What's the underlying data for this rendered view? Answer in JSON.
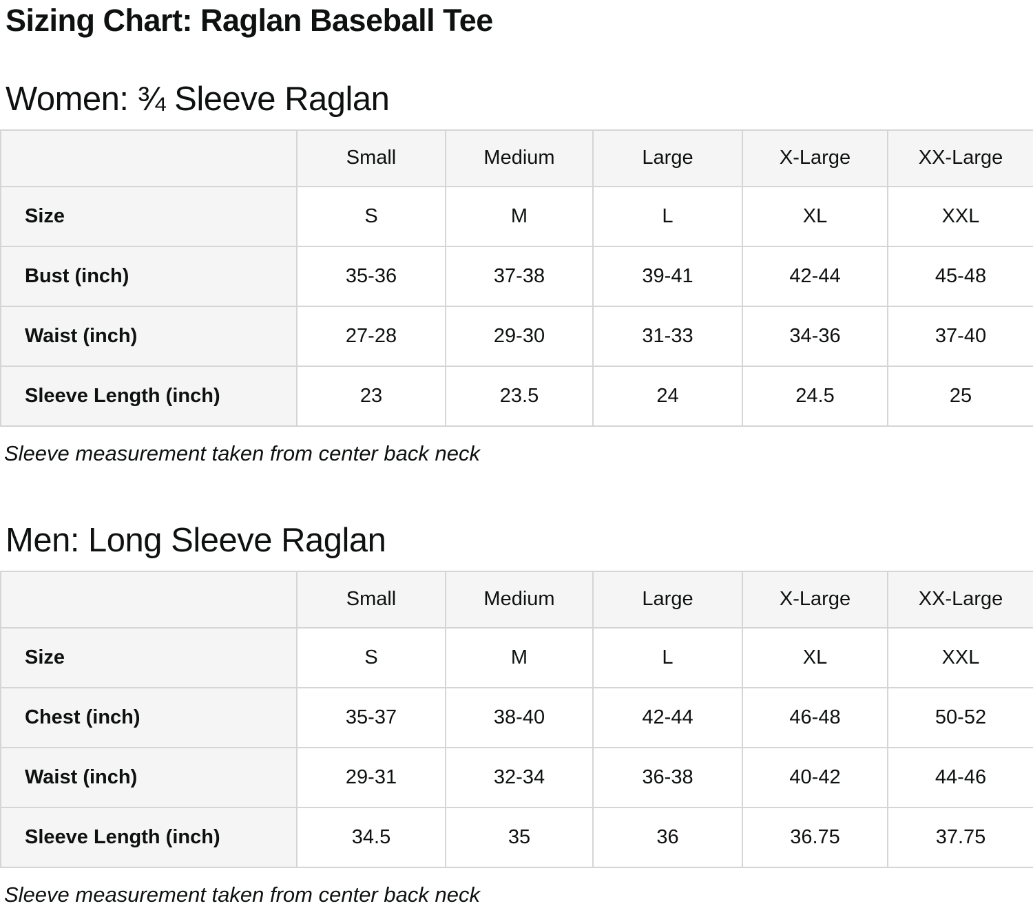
{
  "page": {
    "title": "Sizing Chart: Raglan Baseball Tee"
  },
  "colors": {
    "cell_background": "#f5f5f5",
    "table_border": "#d5d5d5",
    "text": "#0f1111",
    "page_background": "#ffffff"
  },
  "sections": [
    {
      "heading": "Women: ¾ Sleeve Raglan",
      "columns": [
        "Small",
        "Medium",
        "Large",
        "X-Large",
        "XX-Large"
      ],
      "rows": [
        {
          "label": "Size",
          "values": [
            "S",
            "M",
            "L",
            "XL",
            "XXL"
          ]
        },
        {
          "label": "Bust (inch)",
          "values": [
            "35-36",
            "37-38",
            "39-41",
            "42-44",
            "45-48"
          ]
        },
        {
          "label": "Waist (inch)",
          "values": [
            "27-28",
            "29-30",
            "31-33",
            "34-36",
            "37-40"
          ]
        },
        {
          "label": "Sleeve Length (inch)",
          "values": [
            "23",
            "23.5",
            "24",
            "24.5",
            "25"
          ]
        }
      ],
      "note": "Sleeve measurement taken from center back neck"
    },
    {
      "heading": "Men: Long Sleeve Raglan",
      "columns": [
        "Small",
        "Medium",
        "Large",
        "X-Large",
        "XX-Large"
      ],
      "rows": [
        {
          "label": "Size",
          "values": [
            "S",
            "M",
            "L",
            "XL",
            "XXL"
          ]
        },
        {
          "label": "Chest (inch)",
          "values": [
            "35-37",
            "38-40",
            "42-44",
            "46-48",
            "50-52"
          ]
        },
        {
          "label": "Waist (inch)",
          "values": [
            "29-31",
            "32-34",
            "36-38",
            "40-42",
            "44-46"
          ]
        },
        {
          "label": "Sleeve Length (inch)",
          "values": [
            "34.5",
            "35",
            "36",
            "36.75",
            "37.75"
          ]
        }
      ],
      "note": "Sleeve measurement taken from center back neck"
    }
  ]
}
